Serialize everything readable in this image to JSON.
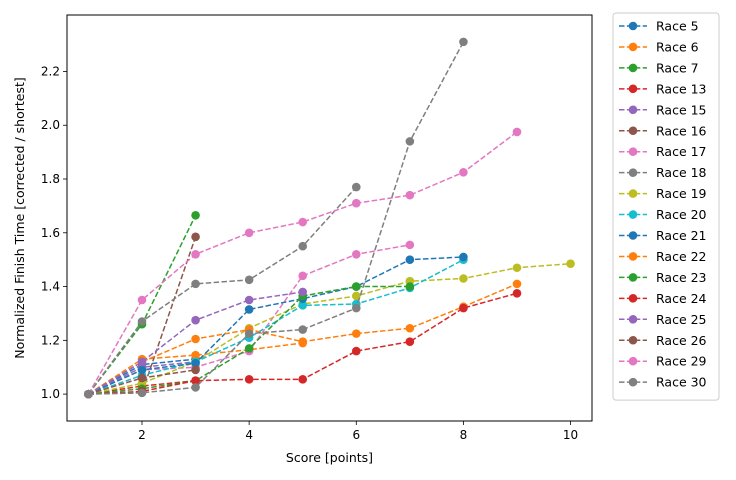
{
  "chart_data": {
    "type": "line",
    "title": "",
    "xlabel": "Score [points]",
    "ylabel": "Normalized Finish Time [corrected / shortest]",
    "xlim": [
      0.6,
      10.4
    ],
    "ylim": [
      0.9,
      2.41
    ],
    "xticks": [
      2,
      4,
      6,
      8,
      10
    ],
    "yticks": [
      1.0,
      1.2,
      1.4,
      1.6,
      1.8,
      2.0,
      2.2
    ],
    "grid": false,
    "legend_position": "outside-right",
    "line_style": "dashed",
    "marker": "circle",
    "colors": {
      "blue": "#1f77b4",
      "orange": "#ff7f0e",
      "green": "#2ca02c",
      "red": "#d62728",
      "purple": "#9467bd",
      "brown": "#8c564b",
      "pink": "#e377c2",
      "gray": "#7f7f7f",
      "olive": "#bcbd22",
      "cyan": "#17becf"
    },
    "series": [
      {
        "name": "Race 5",
        "color": "#1f77b4",
        "x": [
          1,
          2,
          3
        ],
        "y": [
          1.0,
          1.11,
          1.13
        ]
      },
      {
        "name": "Race 6",
        "color": "#ff7f0e",
        "x": [
          1,
          2,
          3,
          4,
          5
        ],
        "y": [
          1.0,
          1.13,
          1.145,
          1.165,
          1.19
        ]
      },
      {
        "name": "Race 7",
        "color": "#2ca02c",
        "x": [
          1,
          2,
          3
        ],
        "y": [
          1.0,
          1.26,
          1.665
        ]
      },
      {
        "name": "Race 13",
        "color": "#d62728",
        "x": [
          1,
          2,
          3
        ],
        "y": [
          1.0,
          1.03,
          1.05
        ]
      },
      {
        "name": "Race 15",
        "color": "#9467bd",
        "x": [
          1,
          2,
          3
        ],
        "y": [
          1.0,
          1.1,
          1.12
        ]
      },
      {
        "name": "Race 16",
        "color": "#8c564b",
        "x": [
          1,
          2,
          3
        ],
        "y": [
          1.0,
          1.005,
          1.585
        ]
      },
      {
        "name": "Race 17",
        "color": "#e377c2",
        "x": [
          1,
          2,
          3,
          4,
          5,
          6,
          7
        ],
        "y": [
          1.0,
          1.09,
          1.1,
          1.16,
          1.44,
          1.52,
          1.555
        ]
      },
      {
        "name": "Race 18",
        "color": "#7f7f7f",
        "x": [
          1,
          2,
          3,
          4,
          5,
          6
        ],
        "y": [
          1.0,
          1.27,
          1.41,
          1.425,
          1.55,
          1.77
        ]
      },
      {
        "name": "Race 19",
        "color": "#bcbd22",
        "x": [
          1,
          2,
          3,
          4,
          5,
          6,
          7,
          8,
          9,
          10
        ],
        "y": [
          1.0,
          1.04,
          1.12,
          1.245,
          1.335,
          1.365,
          1.42,
          1.43,
          1.47,
          1.485
        ]
      },
      {
        "name": "Race 20",
        "color": "#17becf",
        "x": [
          1,
          2,
          3,
          4,
          5,
          6,
          7,
          8
        ],
        "y": [
          1.0,
          1.07,
          1.12,
          1.21,
          1.33,
          1.335,
          1.395,
          1.5
        ]
      },
      {
        "name": "Race 21",
        "color": "#1f77b4",
        "x": [
          1,
          2,
          3,
          4,
          5,
          6,
          7,
          8
        ],
        "y": [
          1.0,
          1.09,
          1.115,
          1.315,
          1.355,
          1.4,
          1.5,
          1.51
        ]
      },
      {
        "name": "Race 22",
        "color": "#ff7f0e",
        "x": [
          1,
          2,
          3,
          4,
          5,
          6,
          7,
          8,
          9
        ],
        "y": [
          1.0,
          1.12,
          1.205,
          1.24,
          1.195,
          1.225,
          1.245,
          1.325,
          1.41
        ]
      },
      {
        "name": "Race 23",
        "color": "#2ca02c",
        "x": [
          1,
          2,
          3,
          4,
          5,
          6,
          7
        ],
        "y": [
          1.0,
          1.02,
          1.05,
          1.17,
          1.365,
          1.4,
          1.4
        ]
      },
      {
        "name": "Race 24",
        "color": "#d62728",
        "x": [
          1,
          2,
          3,
          4,
          5,
          6,
          7,
          8,
          9
        ],
        "y": [
          1.0,
          1.01,
          1.05,
          1.055,
          1.055,
          1.16,
          1.195,
          1.32,
          1.375
        ]
      },
      {
        "name": "Race 25",
        "color": "#9467bd",
        "x": [
          1,
          2,
          3,
          4,
          5
        ],
        "y": [
          1.0,
          1.12,
          1.275,
          1.35,
          1.38
        ]
      },
      {
        "name": "Race 26",
        "color": "#8c564b",
        "x": [
          1,
          2,
          3
        ],
        "y": [
          1.0,
          1.06,
          1.09
        ]
      },
      {
        "name": "Race 29",
        "color": "#e377c2",
        "x": [
          1,
          2,
          3,
          4,
          5,
          6,
          7,
          8,
          9
        ],
        "y": [
          1.0,
          1.35,
          1.52,
          1.6,
          1.64,
          1.71,
          1.74,
          1.825,
          1.975
        ]
      },
      {
        "name": "Race 30",
        "color": "#7f7f7f",
        "x": [
          1,
          2,
          3,
          4,
          5,
          6,
          7,
          8
        ],
        "y": [
          1.0,
          1.005,
          1.025,
          1.225,
          1.24,
          1.32,
          1.94,
          2.31
        ]
      }
    ]
  }
}
